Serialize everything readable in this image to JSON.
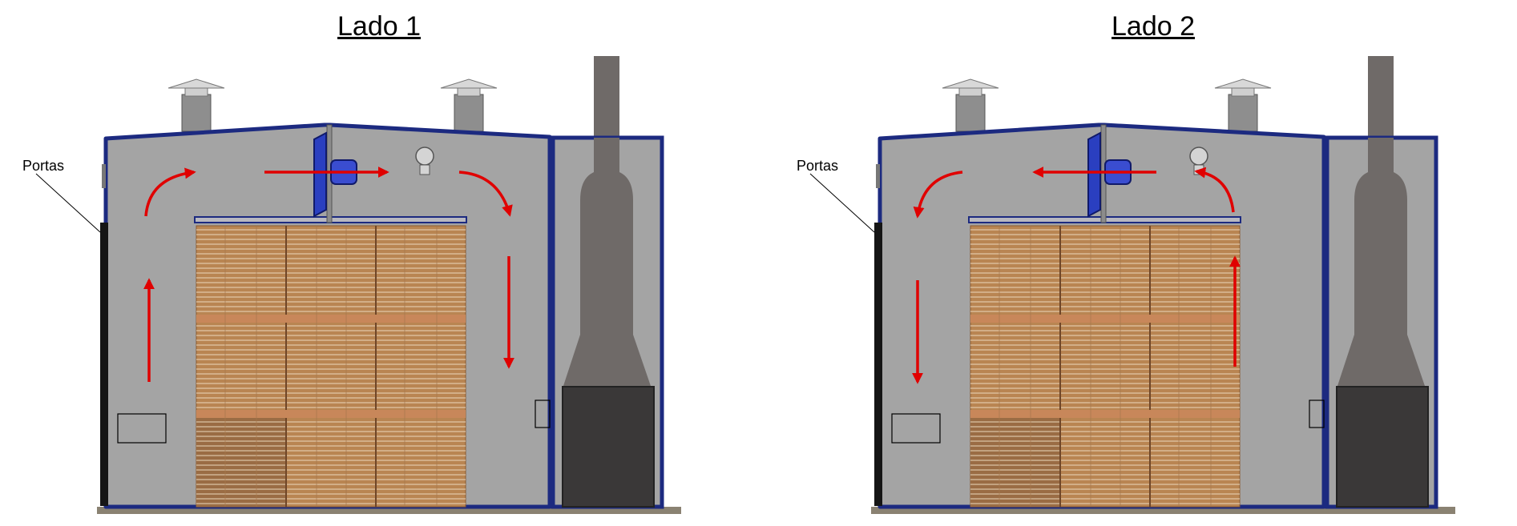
{
  "diagram": {
    "side1": {
      "title": "Lado 1",
      "door_label": "Portas"
    },
    "side2": {
      "title": "Lado 2",
      "door_label": "Portas"
    }
  },
  "colors": {
    "arrow": "#e00000",
    "frame": "#1c2a80",
    "wall": "#a4a4a4",
    "chimney": "#6f6a68",
    "firebox": "#3a3838",
    "wood": "#b98552",
    "fan": "#2a3fc0",
    "ground": "#8a8272"
  }
}
